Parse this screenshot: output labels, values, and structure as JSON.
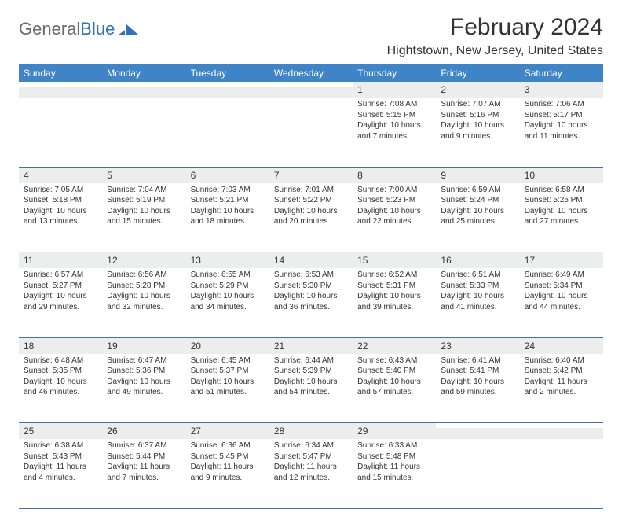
{
  "brand": {
    "textGray": "General",
    "textBlue": "Blue"
  },
  "title": "February 2024",
  "location": "Hightstown, New Jersey, United States",
  "colors": {
    "headerBg": "#3f84c6",
    "headerFg": "#ffffff",
    "dayNumBg": "#eceded",
    "ruleColor": "#4a6fa5",
    "textColor": "#333333",
    "logoGray": "#6b6b6b",
    "logoBlue": "#2f73b8",
    "pageBg": "#ffffff"
  },
  "dayHeaders": [
    "Sunday",
    "Monday",
    "Tuesday",
    "Wednesday",
    "Thursday",
    "Friday",
    "Saturday"
  ],
  "weeks": [
    [
      null,
      null,
      null,
      null,
      {
        "n": "1",
        "sunrise": "7:08 AM",
        "sunset": "5:15 PM",
        "daylight": "10 hours and 7 minutes."
      },
      {
        "n": "2",
        "sunrise": "7:07 AM",
        "sunset": "5:16 PM",
        "daylight": "10 hours and 9 minutes."
      },
      {
        "n": "3",
        "sunrise": "7:06 AM",
        "sunset": "5:17 PM",
        "daylight": "10 hours and 11 minutes."
      }
    ],
    [
      {
        "n": "4",
        "sunrise": "7:05 AM",
        "sunset": "5:18 PM",
        "daylight": "10 hours and 13 minutes."
      },
      {
        "n": "5",
        "sunrise": "7:04 AM",
        "sunset": "5:19 PM",
        "daylight": "10 hours and 15 minutes."
      },
      {
        "n": "6",
        "sunrise": "7:03 AM",
        "sunset": "5:21 PM",
        "daylight": "10 hours and 18 minutes."
      },
      {
        "n": "7",
        "sunrise": "7:01 AM",
        "sunset": "5:22 PM",
        "daylight": "10 hours and 20 minutes."
      },
      {
        "n": "8",
        "sunrise": "7:00 AM",
        "sunset": "5:23 PM",
        "daylight": "10 hours and 22 minutes."
      },
      {
        "n": "9",
        "sunrise": "6:59 AM",
        "sunset": "5:24 PM",
        "daylight": "10 hours and 25 minutes."
      },
      {
        "n": "10",
        "sunrise": "6:58 AM",
        "sunset": "5:25 PM",
        "daylight": "10 hours and 27 minutes."
      }
    ],
    [
      {
        "n": "11",
        "sunrise": "6:57 AM",
        "sunset": "5:27 PM",
        "daylight": "10 hours and 29 minutes."
      },
      {
        "n": "12",
        "sunrise": "6:56 AM",
        "sunset": "5:28 PM",
        "daylight": "10 hours and 32 minutes."
      },
      {
        "n": "13",
        "sunrise": "6:55 AM",
        "sunset": "5:29 PM",
        "daylight": "10 hours and 34 minutes."
      },
      {
        "n": "14",
        "sunrise": "6:53 AM",
        "sunset": "5:30 PM",
        "daylight": "10 hours and 36 minutes."
      },
      {
        "n": "15",
        "sunrise": "6:52 AM",
        "sunset": "5:31 PM",
        "daylight": "10 hours and 39 minutes."
      },
      {
        "n": "16",
        "sunrise": "6:51 AM",
        "sunset": "5:33 PM",
        "daylight": "10 hours and 41 minutes."
      },
      {
        "n": "17",
        "sunrise": "6:49 AM",
        "sunset": "5:34 PM",
        "daylight": "10 hours and 44 minutes."
      }
    ],
    [
      {
        "n": "18",
        "sunrise": "6:48 AM",
        "sunset": "5:35 PM",
        "daylight": "10 hours and 46 minutes."
      },
      {
        "n": "19",
        "sunrise": "6:47 AM",
        "sunset": "5:36 PM",
        "daylight": "10 hours and 49 minutes."
      },
      {
        "n": "20",
        "sunrise": "6:45 AM",
        "sunset": "5:37 PM",
        "daylight": "10 hours and 51 minutes."
      },
      {
        "n": "21",
        "sunrise": "6:44 AM",
        "sunset": "5:39 PM",
        "daylight": "10 hours and 54 minutes."
      },
      {
        "n": "22",
        "sunrise": "6:43 AM",
        "sunset": "5:40 PM",
        "daylight": "10 hours and 57 minutes."
      },
      {
        "n": "23",
        "sunrise": "6:41 AM",
        "sunset": "5:41 PM",
        "daylight": "10 hours and 59 minutes."
      },
      {
        "n": "24",
        "sunrise": "6:40 AM",
        "sunset": "5:42 PM",
        "daylight": "11 hours and 2 minutes."
      }
    ],
    [
      {
        "n": "25",
        "sunrise": "6:38 AM",
        "sunset": "5:43 PM",
        "daylight": "11 hours and 4 minutes."
      },
      {
        "n": "26",
        "sunrise": "6:37 AM",
        "sunset": "5:44 PM",
        "daylight": "11 hours and 7 minutes."
      },
      {
        "n": "27",
        "sunrise": "6:36 AM",
        "sunset": "5:45 PM",
        "daylight": "11 hours and 9 minutes."
      },
      {
        "n": "28",
        "sunrise": "6:34 AM",
        "sunset": "5:47 PM",
        "daylight": "11 hours and 12 minutes."
      },
      {
        "n": "29",
        "sunrise": "6:33 AM",
        "sunset": "5:48 PM",
        "daylight": "11 hours and 15 minutes."
      },
      null,
      null
    ]
  ],
  "labels": {
    "sunrise": "Sunrise: ",
    "sunset": "Sunset: ",
    "daylight": "Daylight: "
  }
}
